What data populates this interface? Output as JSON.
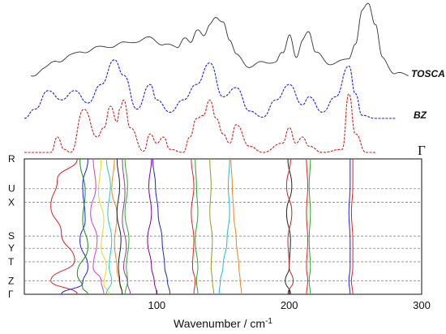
{
  "chart_data": [
    {
      "type": "line",
      "description_hidden": false,
      "x_range": [
        0,
        300
      ],
      "series": [
        {
          "name": "TOSCA",
          "color": "#333333",
          "style": "solid-noisy",
          "x": [
            5,
            15,
            25,
            35,
            45,
            55,
            65,
            75,
            85,
            95,
            105,
            115,
            120,
            125,
            130,
            135,
            140,
            145,
            150,
            155,
            160,
            170,
            180,
            190,
            195,
            200,
            205,
            210,
            215,
            220,
            230,
            240,
            245,
            250,
            255,
            260,
            265,
            270,
            280,
            290
          ],
          "y": [
            0.05,
            0.15,
            0.25,
            0.32,
            0.38,
            0.42,
            0.45,
            0.48,
            0.52,
            0.55,
            0.48,
            0.42,
            0.55,
            0.5,
            0.65,
            0.6,
            0.72,
            0.85,
            0.75,
            0.55,
            0.32,
            0.18,
            0.22,
            0.25,
            0.35,
            0.6,
            0.3,
            0.52,
            0.65,
            0.35,
            0.22,
            0.24,
            0.3,
            0.45,
            0.95,
            1.0,
            0.75,
            0.3,
            0.08,
            0.05
          ]
        },
        {
          "name": "BZ",
          "color": "#2020e0",
          "style": "dashed",
          "x": [
            0,
            8,
            18,
            28,
            38,
            48,
            58,
            68,
            75,
            85,
            95,
            100,
            110,
            120,
            130,
            140,
            150,
            160,
            170,
            180,
            190,
            200,
            210,
            215,
            225,
            235,
            245,
            250,
            255,
            265,
            280
          ],
          "y": [
            0.0,
            0.15,
            0.45,
            0.3,
            0.45,
            0.25,
            0.55,
            0.95,
            0.7,
            0.15,
            0.55,
            0.3,
            0.1,
            0.3,
            0.55,
            0.9,
            0.35,
            0.5,
            0.12,
            0.02,
            0.3,
            0.55,
            0.22,
            0.35,
            0.1,
            0.35,
            0.85,
            0.4,
            0.05,
            0.0,
            0.0
          ]
        },
        {
          "name": "Γ",
          "color": "#cc2020",
          "style": "dashed",
          "x": [
            0,
            20,
            25,
            30,
            35,
            45,
            55,
            60,
            65,
            70,
            72,
            75,
            80,
            90,
            95,
            100,
            105,
            110,
            120,
            125,
            130,
            135,
            140,
            145,
            150,
            155,
            160,
            170,
            180,
            195,
            200,
            205,
            210,
            215,
            225,
            240,
            245,
            250,
            258,
            265
          ],
          "y": [
            0.0,
            0.0,
            0.25,
            0.05,
            0.0,
            0.7,
            0.25,
            0.4,
            0.75,
            0.5,
            0.7,
            0.85,
            0.4,
            0.02,
            0.3,
            0.15,
            0.25,
            0.05,
            0.0,
            0.25,
            0.55,
            0.6,
            0.85,
            0.55,
            0.3,
            0.15,
            0.45,
            0.1,
            0.0,
            0.15,
            0.4,
            0.15,
            0.25,
            0.1,
            0.0,
            0.05,
            0.95,
            0.3,
            0.0,
            0.0
          ]
        }
      ]
    },
    {
      "type": "line",
      "xlabel": "Wavenumber / cm",
      "xlabel_sup": "-1",
      "xlim": [
        0,
        300
      ],
      "x_ticks": [
        100,
        200,
        300
      ],
      "k_points": [
        "R",
        "U",
        "X",
        "S",
        "Y",
        "T",
        "Z",
        "Γ"
      ],
      "k_positions": [
        0.0,
        0.22,
        0.32,
        0.57,
        0.66,
        0.76,
        0.9,
        1.0
      ],
      "dashed_k_lines": [
        "U",
        "X",
        "S",
        "Y",
        "T",
        "Z"
      ],
      "grid": false,
      "bands": [
        {
          "color": "#dd2020",
          "x": [
            40,
            25,
            20,
            28,
            38,
            20,
            40
          ],
          "y": [
            0.0,
            0.15,
            0.35,
            0.55,
            0.75,
            0.9,
            1.0
          ]
        },
        {
          "color": "#2020dd",
          "x": [
            48,
            44,
            46,
            42,
            48,
            44,
            28
          ],
          "y": [
            0.0,
            0.2,
            0.45,
            0.6,
            0.8,
            0.92,
            1.0
          ]
        },
        {
          "color": "#1a8a1a",
          "x": [
            42,
            46,
            44,
            48,
            40,
            44,
            48
          ],
          "y": [
            0.0,
            0.25,
            0.45,
            0.65,
            0.85,
            0.95,
            1.0
          ]
        },
        {
          "color": "#cc44cc",
          "x": [
            52,
            54,
            50,
            55,
            52,
            58,
            60
          ],
          "y": [
            0.0,
            0.2,
            0.4,
            0.6,
            0.8,
            0.9,
            1.0
          ]
        },
        {
          "color": "#dddd22",
          "x": [
            58,
            56,
            60,
            58,
            62,
            60,
            64
          ],
          "y": [
            0.0,
            0.25,
            0.45,
            0.65,
            0.8,
            0.92,
            1.0
          ]
        },
        {
          "color": "#22cccc",
          "x": [
            62,
            65,
            63,
            66,
            64,
            66,
            62
          ],
          "y": [
            0.0,
            0.2,
            0.4,
            0.6,
            0.8,
            0.9,
            1.0
          ]
        },
        {
          "color": "#ee8822",
          "x": [
            68,
            66,
            70,
            68,
            70,
            72,
            74
          ],
          "y": [
            0.0,
            0.22,
            0.42,
            0.62,
            0.82,
            0.92,
            1.0
          ]
        },
        {
          "color": "#222222",
          "x": [
            70,
            72,
            70,
            73,
            71,
            72,
            74
          ],
          "y": [
            0.0,
            0.2,
            0.4,
            0.6,
            0.8,
            0.9,
            1.0
          ]
        },
        {
          "color": "#9933aa",
          "x": [
            74,
            76,
            74,
            77,
            75,
            78,
            80
          ],
          "y": [
            0.0,
            0.25,
            0.45,
            0.65,
            0.8,
            0.92,
            1.0
          ]
        },
        {
          "color": "#33aa33",
          "x": [
            76,
            78,
            76,
            79,
            77,
            78,
            76
          ],
          "y": [
            0.0,
            0.2,
            0.4,
            0.6,
            0.8,
            0.9,
            1.0
          ]
        },
        {
          "color": "#880088",
          "x": [
            96,
            94,
            96,
            93,
            96,
            98,
            100
          ],
          "y": [
            0.0,
            0.2,
            0.4,
            0.6,
            0.8,
            0.9,
            1.0
          ]
        },
        {
          "color": "#2222cc",
          "x": [
            97,
            99,
            101,
            104,
            106,
            108,
            110
          ],
          "y": [
            0.0,
            0.2,
            0.4,
            0.6,
            0.8,
            0.9,
            1.0
          ]
        },
        {
          "color": "#dd2222",
          "x": [
            126,
            128,
            126,
            128,
            127,
            129,
            128
          ],
          "y": [
            0.0,
            0.2,
            0.4,
            0.6,
            0.8,
            0.9,
            1.0
          ]
        },
        {
          "color": "#22aa22",
          "x": [
            129,
            130,
            131,
            129,
            131,
            130,
            131
          ],
          "y": [
            0.0,
            0.2,
            0.4,
            0.6,
            0.8,
            0.9,
            1.0
          ]
        },
        {
          "color": "#999922",
          "x": [
            140,
            141,
            140,
            142,
            141,
            142,
            143
          ],
          "y": [
            0.0,
            0.2,
            0.4,
            0.6,
            0.8,
            0.9,
            1.0
          ]
        },
        {
          "color": "#22bbcc",
          "x": [
            155,
            154,
            155,
            153,
            150,
            148,
            147
          ],
          "y": [
            0.0,
            0.2,
            0.4,
            0.6,
            0.8,
            0.9,
            1.0
          ]
        },
        {
          "color": "#ee8822",
          "x": [
            156,
            157,
            158,
            160,
            162,
            163,
            164
          ],
          "y": [
            0.0,
            0.2,
            0.4,
            0.6,
            0.8,
            0.9,
            1.0
          ]
        },
        {
          "color": "#222222",
          "x": [
            199,
            202,
            198,
            201,
            200,
            197,
            201
          ],
          "y": [
            0.0,
            0.2,
            0.4,
            0.6,
            0.8,
            0.9,
            1.0
          ]
        },
        {
          "color": "#cc2222",
          "x": [
            201,
            198,
            202,
            199,
            200,
            203,
            199
          ],
          "y": [
            0.0,
            0.2,
            0.4,
            0.6,
            0.8,
            0.9,
            1.0
          ]
        },
        {
          "color": "#22aa22",
          "x": [
            216,
            215,
            216,
            215,
            216,
            215,
            216
          ],
          "y": [
            0.0,
            0.2,
            0.4,
            0.6,
            0.8,
            0.9,
            1.0
          ]
        },
        {
          "color": "#dd2222",
          "x": [
            213,
            214,
            213,
            214,
            213,
            214,
            213
          ],
          "y": [
            0.0,
            0.2,
            0.4,
            0.6,
            0.8,
            0.9,
            1.0
          ]
        },
        {
          "color": "#2222dd",
          "x": [
            246,
            246,
            245,
            246,
            246,
            245,
            246
          ],
          "y": [
            0.0,
            0.2,
            0.4,
            0.6,
            0.8,
            0.9,
            1.0
          ]
        },
        {
          "color": "#dd2222",
          "x": [
            248,
            248,
            247,
            248,
            248,
            247,
            248
          ],
          "y": [
            0.0,
            0.2,
            0.4,
            0.6,
            0.8,
            0.9,
            1.0
          ]
        }
      ]
    }
  ]
}
